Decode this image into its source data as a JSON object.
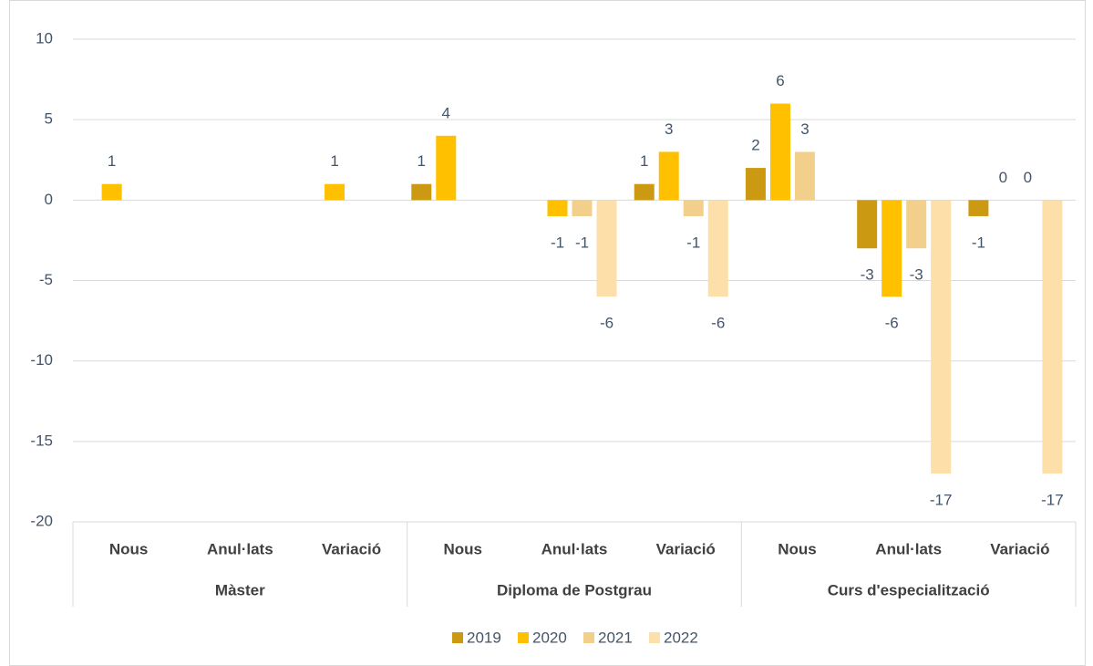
{
  "chart_data": {
    "type": "bar",
    "groups": [
      {
        "name": "Màster",
        "categories": [
          "Nous",
          "Anul·lats",
          "Variació"
        ]
      },
      {
        "name": "Diploma de Postgrau",
        "categories": [
          "Nous",
          "Anul·lats",
          "Variació"
        ]
      },
      {
        "name": "Curs d'especialització",
        "categories": [
          "Nous",
          "Anul·lats",
          "Variació"
        ]
      }
    ],
    "series": [
      {
        "name": "2019",
        "color": "#cc9a12",
        "values": [
          null,
          null,
          null,
          1,
          null,
          1,
          2,
          -3,
          -1
        ]
      },
      {
        "name": "2020",
        "color": "#ffc000",
        "values": [
          1,
          null,
          1,
          4,
          -1,
          3,
          6,
          -6,
          0
        ]
      },
      {
        "name": "2021",
        "color": "#f3cf8c",
        "values": [
          null,
          null,
          null,
          null,
          -1,
          -1,
          3,
          -3,
          0
        ]
      },
      {
        "name": "2022",
        "color": "#fcdfa9",
        "values": [
          null,
          null,
          null,
          null,
          -6,
          -6,
          null,
          -17,
          -17
        ]
      }
    ],
    "ylim": [
      -20,
      10
    ],
    "yticks": [
      -20,
      -15,
      -10,
      -5,
      0,
      5,
      10
    ],
    "grid": true,
    "legend": "bottom"
  }
}
